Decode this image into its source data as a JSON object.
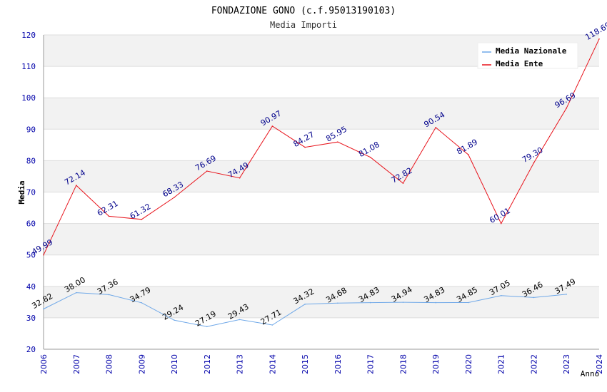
{
  "chart_data": {
    "type": "line",
    "title": "FONDAZIONE GONO (c.f.95013190103)",
    "subtitle": "Media Importi",
    "xlabel": "Anno",
    "ylabel": "Media",
    "ylim": [
      20,
      120
    ],
    "yticks": [
      20,
      30,
      40,
      50,
      60,
      70,
      80,
      90,
      100,
      110,
      120
    ],
    "x": [
      "2006",
      "2007",
      "2008",
      "2009",
      "2010",
      "2012",
      "2013",
      "2014",
      "2015",
      "2016",
      "2017",
      "2018",
      "2019",
      "2020",
      "2021",
      "2022",
      "2023",
      "2024"
    ],
    "series": [
      {
        "name": "Media Nazionale",
        "color": "#6fa8e8",
        "label_color": "#000000",
        "values": [
          32.82,
          38.0,
          37.36,
          34.79,
          29.24,
          27.19,
          29.43,
          27.71,
          34.32,
          34.68,
          34.83,
          34.94,
          34.83,
          34.85,
          37.05,
          36.46,
          37.49,
          null
        ],
        "labels": [
          "32.82",
          "38.00",
          "37.36",
          "34.79",
          "29.24",
          "27.19",
          "29.43",
          "27.71",
          "34.32",
          "34.68",
          "34.83",
          "34.94",
          "34.83",
          "34.85",
          "37.05",
          "36.46",
          "37.49",
          ""
        ]
      },
      {
        "name": "Media Ente",
        "color": "#e8141c",
        "label_color": "#00008b",
        "values": [
          49.99,
          72.14,
          62.31,
          61.32,
          68.33,
          76.69,
          74.49,
          90.97,
          84.27,
          85.95,
          81.08,
          72.82,
          90.54,
          81.89,
          60.01,
          79.3,
          96.69,
          118.69
        ],
        "labels": [
          "49.99",
          "72.14",
          "62.31",
          "61.32",
          "68.33",
          "76.69",
          "74.49",
          "90.97",
          "84.27",
          "85.95",
          "81.08",
          "72.82",
          "90.54",
          "81.89",
          "60.01",
          "79.30",
          "96.69",
          "118.69"
        ]
      }
    ],
    "grid": true,
    "legend": "top-right"
  },
  "colors": {
    "band": "#f2f2f2",
    "grid": "#dddddd",
    "tick_text": "#0000aa",
    "axis": "#999999"
  }
}
